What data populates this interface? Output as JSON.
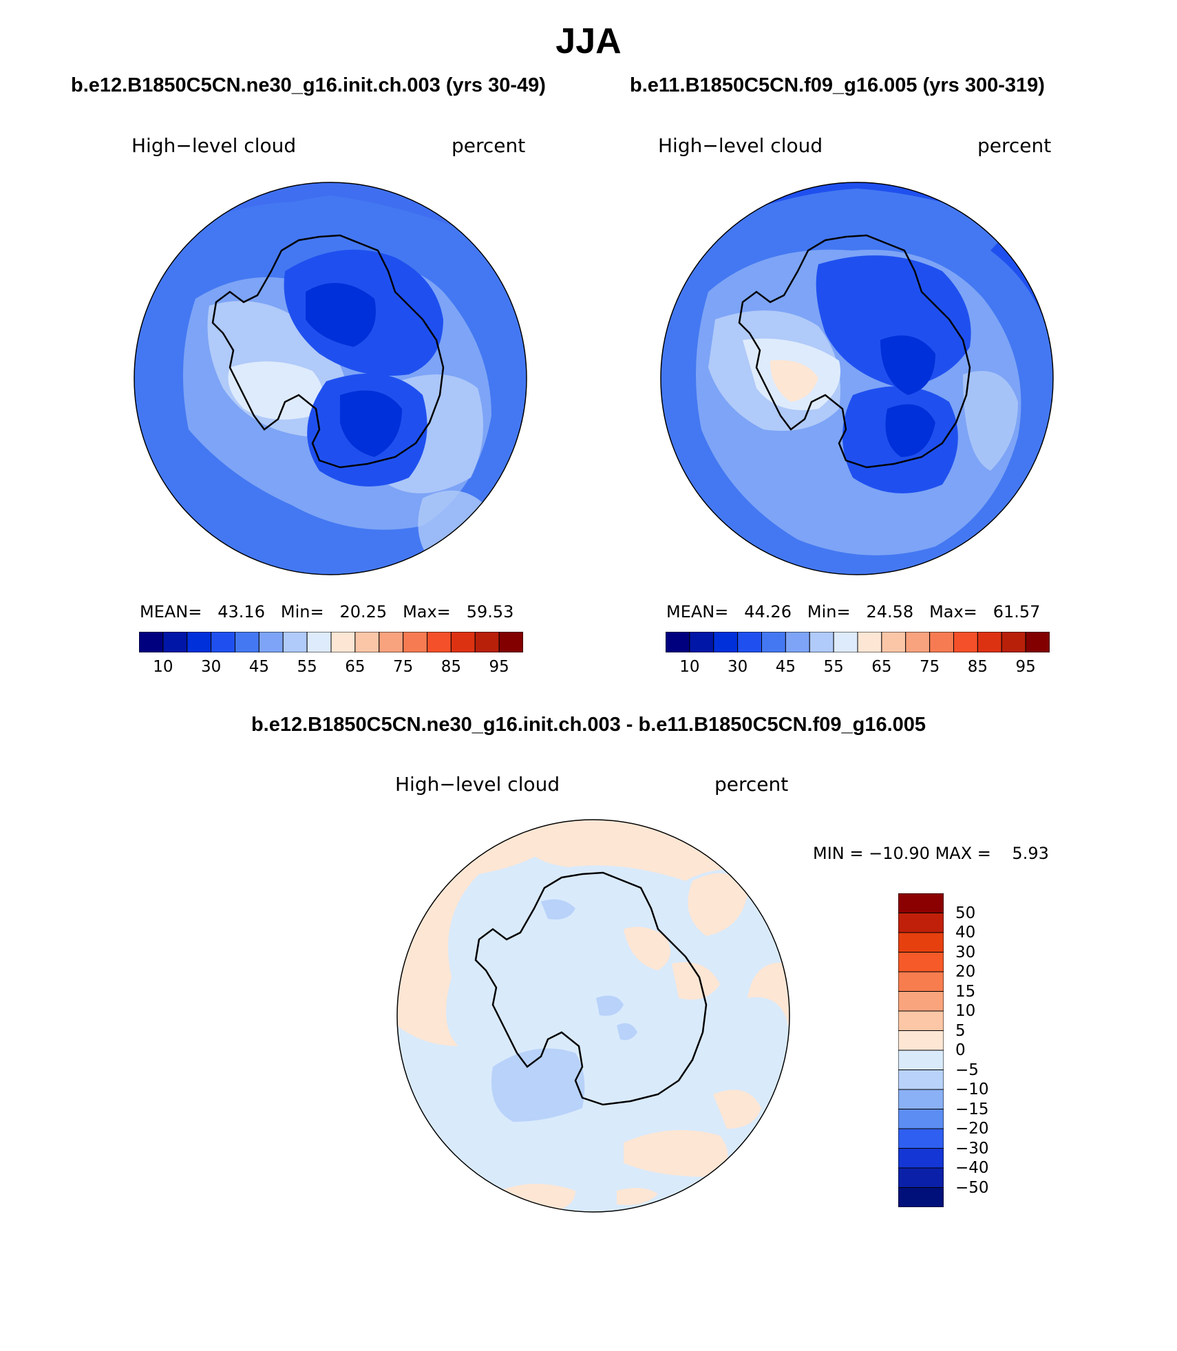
{
  "title": "JJA",
  "panels": [
    {
      "case_title": "b.e12.B1850C5CN.ne30_g16.init.ch.003 (yrs 30-49)",
      "variable": "High−level cloud",
      "units": "percent",
      "stats": {
        "mean_label": "MEAN=",
        "mean": "43.16",
        "min_label": "Min=",
        "min": "20.25",
        "max_label": "Max=",
        "max": "59.53"
      }
    },
    {
      "case_title": "b.e11.B1850C5CN.f09_g16.005 (yrs 300-319)",
      "variable": "High−level cloud",
      "units": "percent",
      "stats": {
        "mean_label": "MEAN=",
        "mean": "44.26",
        "min_label": "Min=",
        "min": "24.58",
        "max_label": "Max=",
        "max": "61.57"
      }
    }
  ],
  "colorbar": {
    "colors": [
      "#00007f",
      "#0016a6",
      "#0030d9",
      "#1f50ef",
      "#4478f2",
      "#7da4f6",
      "#b0caf9",
      "#deebfc",
      "#fde6d4",
      "#fbc6a8",
      "#f9a27e",
      "#f77b52",
      "#f4502a",
      "#dd3212",
      "#b8200a",
      "#820000"
    ],
    "tick_labels": [
      "10",
      "30",
      "45",
      "55",
      "65",
      "75",
      "85",
      "95"
    ]
  },
  "difference": {
    "title": "b.e12.B1850C5CN.ne30_g16.init.ch.003 - b.e11.B1850C5CN.f09_g16.005",
    "variable": "High−level cloud",
    "units": "percent",
    "min_label": "MIN =",
    "min": "−10.90",
    "max_label": "MAX =",
    "max": "5.93",
    "colors_top_to_bottom": [
      "#8b0000",
      "#c0200a",
      "#e6400f",
      "#f55a28",
      "#f77d4f",
      "#f9a47d",
      "#fcc7a6",
      "#fde6d4",
      "#d9eafb",
      "#b8d2fa",
      "#8ab0f5",
      "#5c8df2",
      "#2f5ff0",
      "#1436d4",
      "#0a20a8",
      "#00107a"
    ],
    "tick_labels": [
      "50",
      "40",
      "30",
      "20",
      "15",
      "10",
      "5",
      "0",
      "−5",
      "−10",
      "−15",
      "−20",
      "−30",
      "−40",
      "−50"
    ]
  }
}
